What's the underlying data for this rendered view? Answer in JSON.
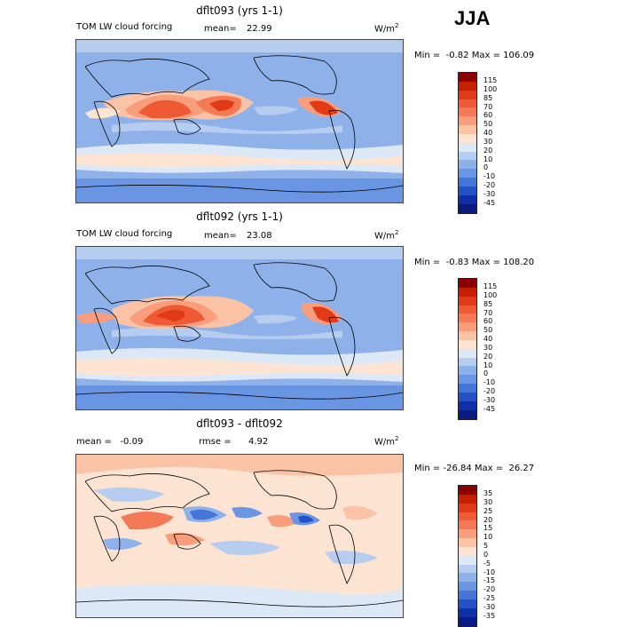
{
  "season": "JJA",
  "panels": [
    {
      "title": "dflt093 (yrs 1-1)",
      "left_label": "TOM LW cloud forcing",
      "stat_label": "mean=",
      "stat_value": "22.99",
      "units": "W/m",
      "units_sup": "2",
      "minmax": "Min =  -0.82 Max = 106.09",
      "colorbar_labels": [
        "115",
        "100",
        "85",
        "70",
        "60",
        "50",
        "40",
        "30",
        "20",
        "10",
        "0",
        "-10",
        "-20",
        "-30",
        "-45"
      ],
      "colorbar_colors": [
        "#8b0000",
        "#c81e00",
        "#e03b16",
        "#ee5a33",
        "#f47a55",
        "#f89e7c",
        "#fbc3a6",
        "#fde4d2",
        "#dde8f6",
        "#b7cdf0",
        "#8fb1ea",
        "#6a95e2",
        "#4576d7",
        "#2452c6",
        "#0f2fa8",
        "#0a1a80"
      ]
    },
    {
      "title": "dflt092 (yrs 1-1)",
      "left_label": "TOM LW cloud forcing",
      "stat_label": "mean=",
      "stat_value": "23.08",
      "units": "W/m",
      "units_sup": "2",
      "minmax": "Min =  -0.83 Max = 108.20",
      "colorbar_labels": [
        "115",
        "100",
        "85",
        "70",
        "60",
        "50",
        "40",
        "30",
        "20",
        "10",
        "0",
        "-10",
        "-20",
        "-30",
        "-45"
      ],
      "colorbar_colors": [
        "#8b0000",
        "#c81e00",
        "#e03b16",
        "#ee5a33",
        "#f47a55",
        "#f89e7c",
        "#fbc3a6",
        "#fde4d2",
        "#dde8f6",
        "#b7cdf0",
        "#8fb1ea",
        "#6a95e2",
        "#4576d7",
        "#2452c6",
        "#0f2fa8",
        "#0a1a80"
      ]
    },
    {
      "title": "dflt093 - dflt092",
      "left_label": "mean =   -0.09",
      "stat_label": "rmse =",
      "stat_value": "4.92",
      "units": "W/m",
      "units_sup": "2",
      "minmax": "Min = -26.84 Max =  26.27",
      "colorbar_labels": [
        "35",
        "30",
        "25",
        "20",
        "15",
        "10",
        "5",
        "0",
        "-5",
        "-10",
        "-15",
        "-20",
        "-25",
        "-30",
        "-35"
      ],
      "colorbar_colors": [
        "#8b0000",
        "#c81e00",
        "#e03b16",
        "#ee5a33",
        "#f47a55",
        "#f89e7c",
        "#fbc3a6",
        "#fde4d2",
        "#dde8f6",
        "#b7cdf0",
        "#8fb1ea",
        "#6a95e2",
        "#4576d7",
        "#2452c6",
        "#0f2fa8",
        "#0a1a80"
      ]
    }
  ]
}
